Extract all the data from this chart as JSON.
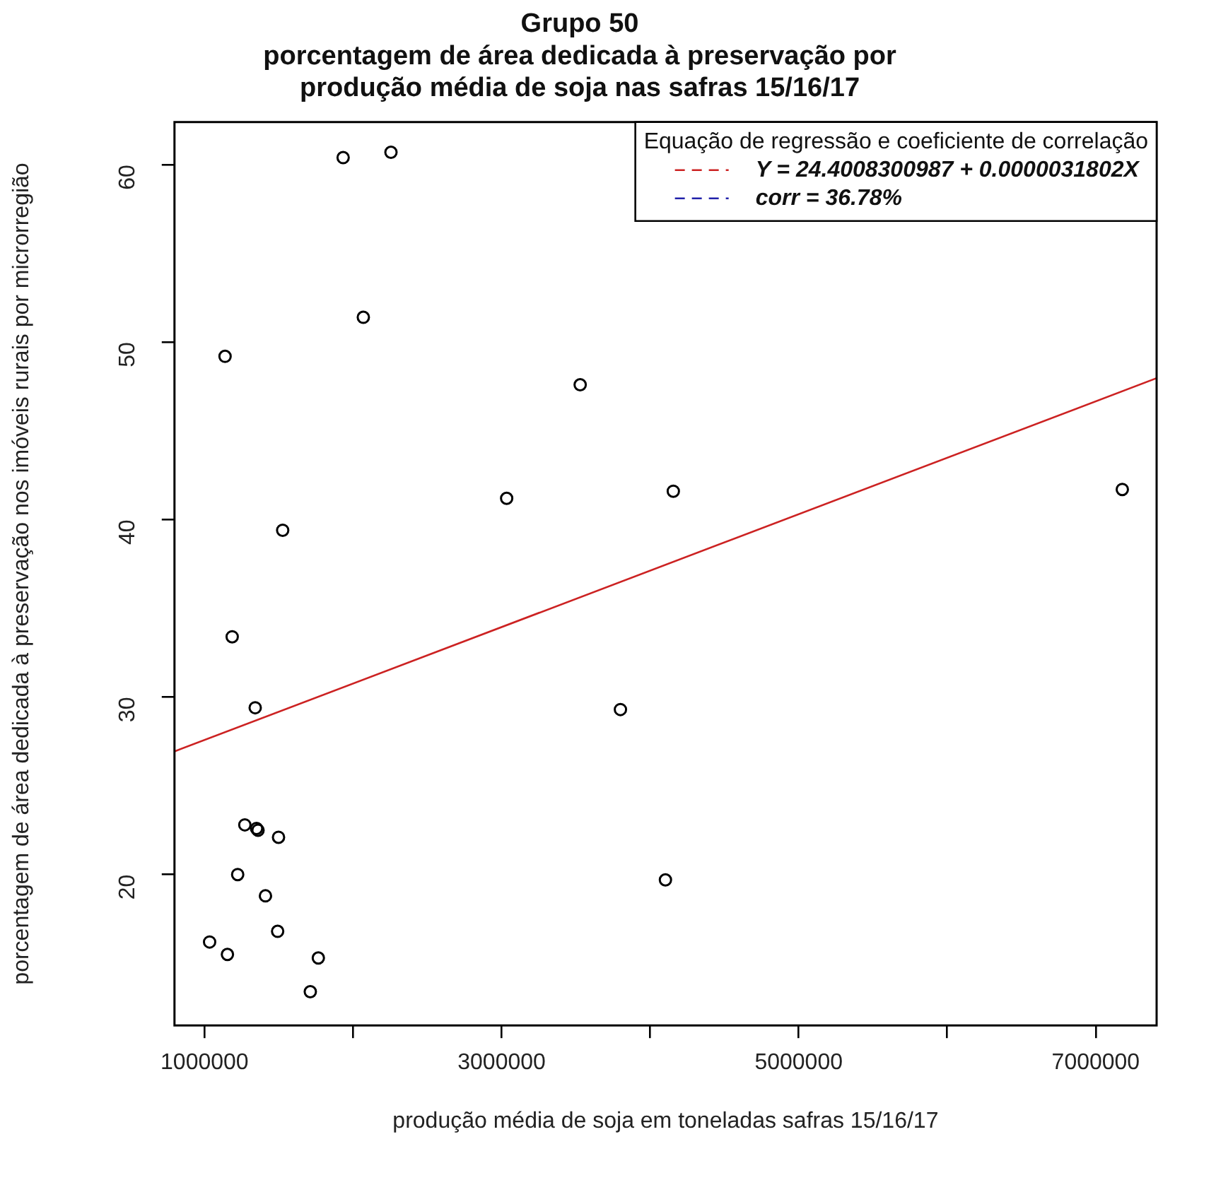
{
  "chart_data": {
    "type": "scatter",
    "title": "Grupo 50",
    "subtitle": "porcentagem de área dedicada à preservação por produção média de soja nas safras 15/16/17",
    "xlabel": "produção média de soja em toneladas safras 15/16/17",
    "ylabel": "porcentagem de área dedicada à preservação nos imóveis rurais por microrregião",
    "legend_title": "Equação de regressão e coeficiente de correlação",
    "legend": "top right",
    "marker": "circle",
    "grid": false,
    "xlim": [
      797500,
      7410000
    ],
    "ylim": [
      11.5,
      62.4
    ],
    "xticks": [
      1000000,
      {
        "value": 2000000,
        "label": null
      },
      3000000,
      {
        "value": 4000000,
        "label": null
      },
      5000000,
      {
        "value": 6000000,
        "label": null
      },
      7000000
    ],
    "yticks": [
      20,
      30,
      40,
      50,
      60
    ],
    "series": [
      {
        "color": "#000000",
        "x": [
          1933000,
          2255000,
          2069000,
          1138000,
          3529000,
          1526000,
          3034000,
          4156000,
          7179000,
          1186000,
          1341000,
          3800000,
          1271000,
          1350000,
          1360000,
          1498000,
          1223000,
          1410000,
          1492000,
          1034000,
          1154000,
          1766000,
          1712000,
          4103000
        ],
        "values": [
          60.4,
          60.7,
          51.4,
          49.2,
          47.6,
          39.4,
          41.2,
          41.6,
          41.7,
          33.4,
          29.4,
          29.3,
          22.8,
          22.6,
          22.5,
          22.1,
          20.0,
          18.8,
          16.8,
          16.2,
          15.5,
          15.3,
          13.4,
          19.7
        ]
      },
      {
        "type": "line",
        "name": "Y = 24.4008300987 + 0.0000031802X",
        "color": "#cc2222",
        "line_style": "solid",
        "marker": "none",
        "x": [
          797500,
          7410000
        ],
        "values": [
          26.94,
          47.97
        ]
      },
      {
        "type": "line",
        "name": "corr = 36.78%",
        "color": "#2222aa",
        "line_style": "solid",
        "marker": "none"
      }
    ]
  }
}
